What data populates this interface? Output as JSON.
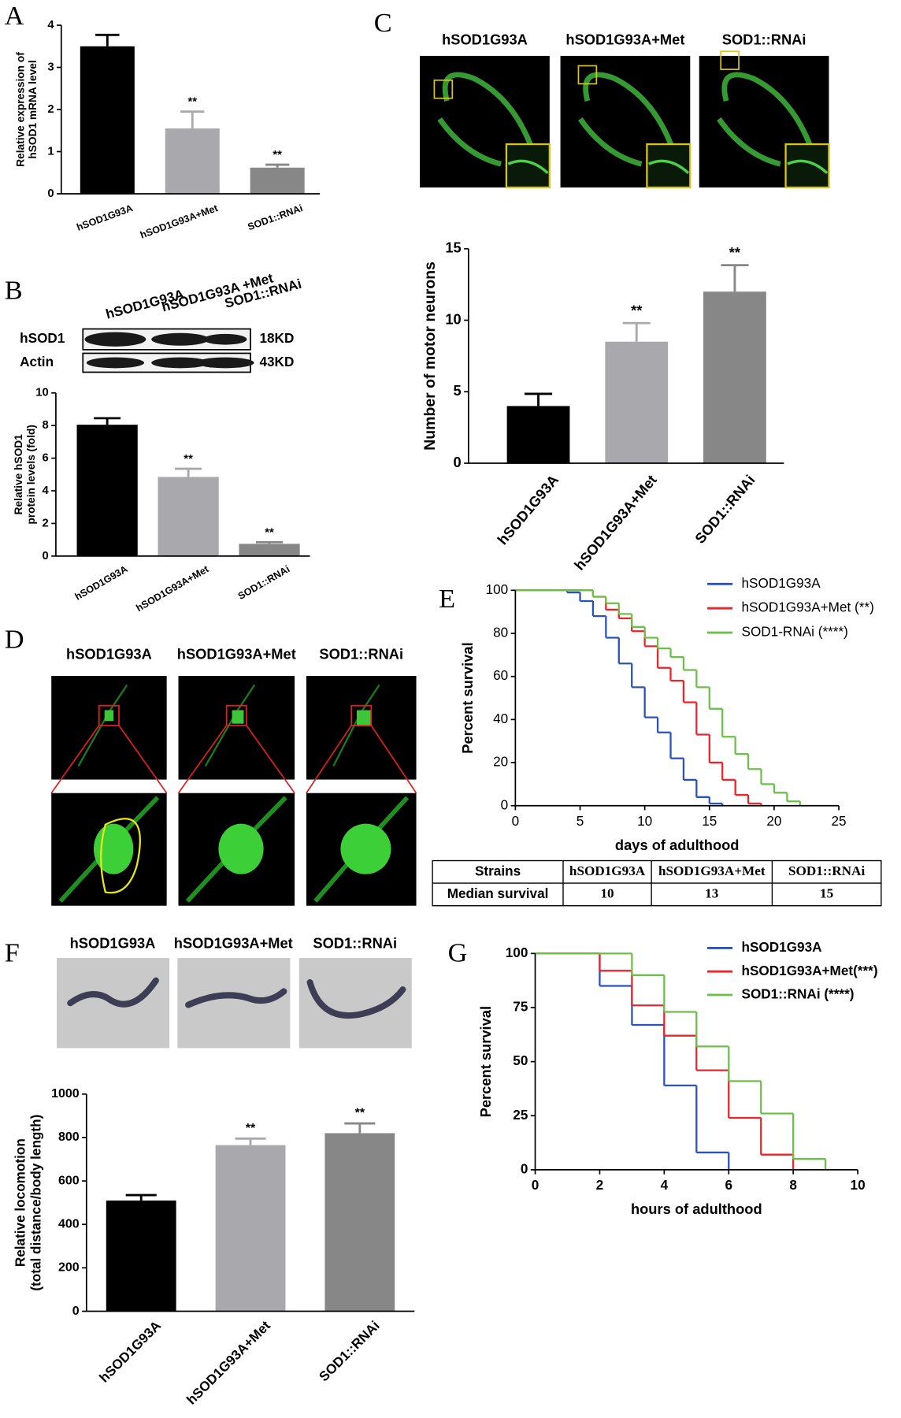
{
  "chart_data": [
    {
      "type": "bar",
      "panel": "A",
      "y_label": [
        "Relative expression of",
        "hSOD1 mRNA level"
      ],
      "categories": [
        "hSOD1G93A",
        "hSOD1G93A+Met",
        "SOD1::RNAi"
      ],
      "values": [
        3.5,
        1.55,
        0.62
      ],
      "errors": [
        0.27,
        0.4,
        0.07
      ],
      "annotations": [
        null,
        "**",
        "**"
      ],
      "colors": [
        "#000000",
        "#a9a9ad",
        "#878787"
      ],
      "ylim": [
        0,
        4
      ],
      "yticks": [
        0,
        1,
        2,
        3,
        4
      ]
    },
    {
      "type": "bar",
      "panel": "B",
      "y_label": [
        "Relative hSOD1",
        "protein levels (fold)"
      ],
      "categories": [
        "hSOD1G93A",
        "hSOD1G93A+Met",
        "SOD1::RNAi"
      ],
      "values": [
        8.05,
        4.85,
        0.75
      ],
      "errors": [
        0.4,
        0.5,
        0.1
      ],
      "annotations": [
        null,
        "**",
        "**"
      ],
      "colors": [
        "#000000",
        "#a9a9ad",
        "#878787"
      ],
      "ylim": [
        0,
        10
      ],
      "yticks": [
        0,
        2,
        4,
        6,
        8,
        10
      ]
    },
    {
      "type": "bar",
      "panel": "C",
      "y_label": [
        "Number of motor neurons"
      ],
      "categories": [
        "hSOD1G93A",
        "hSOD1G93A+Met",
        "SOD1::RNAi"
      ],
      "values": [
        4,
        8.5,
        12
      ],
      "errors": [
        0.85,
        1.3,
        1.85
      ],
      "annotations": [
        null,
        "**",
        "**"
      ],
      "colors": [
        "#000000",
        "#a9a9ad",
        "#878787"
      ],
      "ylim": [
        0,
        15
      ],
      "yticks": [
        0,
        5,
        10,
        15
      ]
    },
    {
      "type": "line",
      "panel": "E",
      "step": true,
      "x_label": "days of adulthood",
      "y_label": [
        "Percent survival"
      ],
      "xlim": [
        0,
        25
      ],
      "xticks": [
        0,
        5,
        10,
        15,
        20,
        25
      ],
      "ylim": [
        0,
        100
      ],
      "yticks": [
        0,
        20,
        40,
        60,
        80,
        100
      ],
      "legend": "upper right",
      "series": [
        {
          "name": "hSOD1G93A",
          "color": "#2a52be",
          "x": [
            0,
            4,
            5,
            6,
            7,
            8,
            9,
            10,
            11,
            12,
            13,
            14,
            15,
            16
          ],
          "values": [
            100,
            99,
            95,
            88,
            78,
            66,
            55,
            41,
            34,
            22,
            12,
            4,
            1,
            0
          ]
        },
        {
          "name": "hSOD1G93A+Met (**)",
          "color": "#e8262b",
          "x": [
            0,
            6,
            7,
            8,
            9,
            10,
            11,
            12,
            13,
            14,
            15,
            16,
            17,
            18,
            19
          ],
          "values": [
            100,
            97,
            91,
            87,
            81,
            74,
            64,
            58,
            48,
            33,
            20,
            12,
            5,
            1,
            0
          ]
        },
        {
          "name": "SOD1-RNAi (****)",
          "color": "#6cc04a",
          "x": [
            0,
            6,
            7,
            8,
            9,
            10,
            11,
            12,
            13,
            14,
            15,
            16,
            17,
            18,
            19,
            20,
            21,
            22
          ],
          "values": [
            100,
            97,
            94,
            89,
            83,
            78,
            73,
            69,
            63,
            55,
            45,
            32,
            24,
            17,
            10,
            6,
            2,
            0
          ]
        }
      ]
    },
    {
      "type": "bar",
      "panel": "F",
      "y_label": [
        "Relative locomotion",
        "(total distance/body length)"
      ],
      "categories": [
        "hSOD1G93A",
        "hSOD1G93A+Met",
        "SOD1::RNAi"
      ],
      "values": [
        510,
        765,
        820
      ],
      "errors": [
        25,
        30,
        45
      ],
      "annotations": [
        null,
        "**",
        "**"
      ],
      "colors": [
        "#000000",
        "#a9a9ad",
        "#878787"
      ],
      "ylim": [
        0,
        1000
      ],
      "yticks": [
        0,
        200,
        400,
        600,
        800,
        1000
      ]
    },
    {
      "type": "line",
      "panel": "G",
      "step": true,
      "x_label": "hours of adulthood",
      "y_label": [
        "Percent survival"
      ],
      "xlim": [
        0,
        10
      ],
      "xticks": [
        0,
        2,
        4,
        6,
        8,
        10
      ],
      "ylim": [
        0,
        100
      ],
      "yticks": [
        0,
        25,
        50,
        75,
        100
      ],
      "legend": "upper right",
      "series": [
        {
          "name": "hSOD1G93A",
          "color": "#2a52be",
          "x": [
            0,
            2,
            3,
            4,
            5,
            6
          ],
          "values": [
            100,
            85,
            67,
            39,
            8,
            0
          ]
        },
        {
          "name": "hSOD1G93A+Met(***)",
          "color": "#e8262b",
          "x": [
            0,
            2,
            3,
            4,
            5,
            6,
            7,
            8
          ],
          "values": [
            100,
            92,
            76,
            62,
            46,
            24,
            7,
            0
          ]
        },
        {
          "name": "SOD1::RNAi (****)",
          "color": "#6cc04a",
          "x": [
            0,
            3,
            4,
            5,
            6,
            7,
            8,
            9
          ],
          "values": [
            100,
            90,
            73,
            57,
            41,
            26,
            5,
            0
          ]
        }
      ]
    }
  ],
  "blot": {
    "lanes": [
      "hSOD1G93A",
      "hSOD1G93A +Met",
      "SOD1::RNAi"
    ],
    "rows": [
      "hSOD1",
      "Actin"
    ],
    "sizes": [
      "18KD",
      "43KD"
    ]
  },
  "images": [
    {
      "titles": [
        "hSOD1G93A",
        "hSOD1G93A+Met",
        "SOD1::RNAi"
      ]
    },
    {
      "panel": "D",
      "titles": [
        "hSOD1G93A",
        "hSOD1G93A+Met",
        "SOD1::RNAi"
      ]
    },
    {
      "titles": [
        "hSOD1G93A",
        "hSOD1G93A+Met",
        "SOD1::RNAi"
      ]
    }
  ],
  "table": {
    "header": [
      "Strains",
      "hSOD1G93A",
      "hSOD1G93A+Met",
      "SOD1::RNAi"
    ],
    "rows": [
      [
        "Median survival",
        10,
        13,
        15
      ]
    ]
  }
}
